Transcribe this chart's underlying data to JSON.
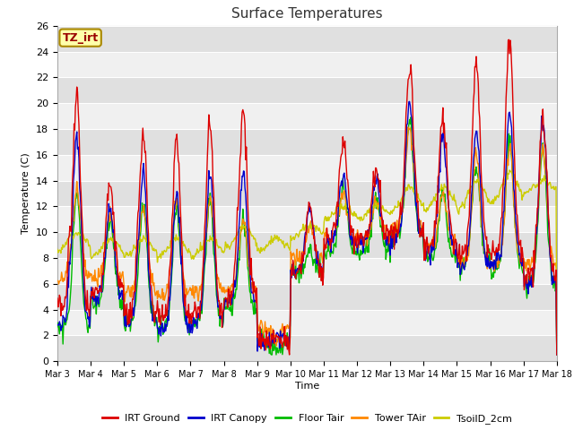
{
  "title": "Surface Temperatures",
  "xlabel": "Time",
  "ylabel": "Temperature (C)",
  "ylim": [
    0,
    26
  ],
  "xlim_days": 15,
  "x_tick_labels": [
    "Mar 3",
    "Mar 4",
    "Mar 5",
    "Mar 6",
    "Mar 7",
    "Mar 8",
    "Mar 9",
    "Mar 10",
    "Mar 11",
    "Mar 12",
    "Mar 13",
    "Mar 14",
    "Mar 15",
    "Mar 16",
    "Mar 17",
    "Mar 18"
  ],
  "legend_labels": [
    "IRT Ground",
    "IRT Canopy",
    "Floor Tair",
    "Tower TAir",
    "TsoilD_2cm"
  ],
  "legend_colors": [
    "#dd0000",
    "#0000cc",
    "#00bb00",
    "#ff8800",
    "#cccc00"
  ],
  "annotation_text": "TZ_irt",
  "annotation_bg": "#ffffaa",
  "annotation_border": "#aa8800",
  "plot_bg_light": "#f0f0f0",
  "plot_bg_dark": "#e0e0e0",
  "fig_bg": "#ffffff",
  "yticks": [
    0,
    2,
    4,
    6,
    8,
    10,
    12,
    14,
    16,
    18,
    20,
    22,
    24,
    26
  ],
  "n_per_day": 48
}
